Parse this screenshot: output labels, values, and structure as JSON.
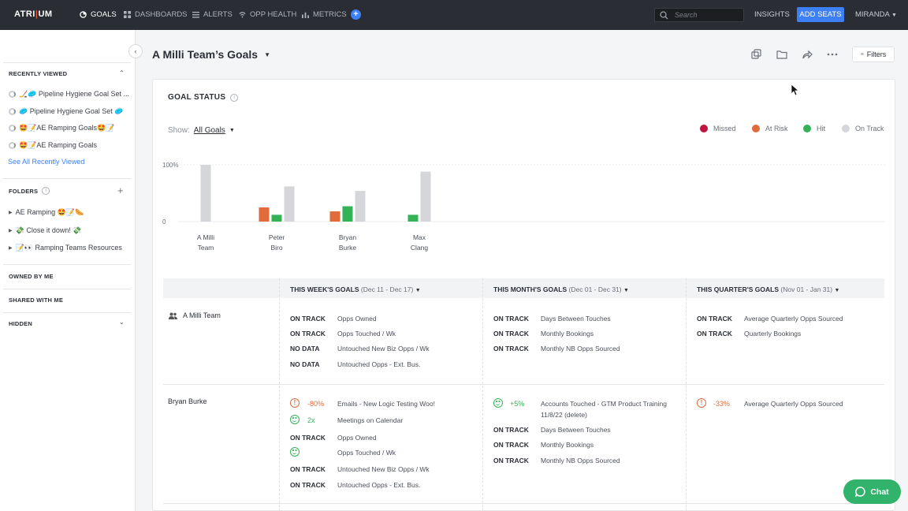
{
  "nav": {
    "logo_left": "ATRI",
    "logo_right": "UM",
    "items": [
      {
        "label": "GOALS",
        "icon": "goal-icon"
      },
      {
        "label": "DASHBOARDS",
        "icon": "grid-icon"
      },
      {
        "label": "ALERTS",
        "icon": "list-icon"
      },
      {
        "label": "OPP HEALTH",
        "icon": "wifi-icon"
      },
      {
        "label": "METRICS",
        "icon": "bar-chart-icon"
      }
    ],
    "search_placeholder": "Search",
    "insights": "INSIGHTS",
    "add_seats": "ADD SEATS",
    "user": "MIRANDA"
  },
  "sidebar": {
    "recently_viewed_title": "RECENTLY VIEWED",
    "recent": [
      "🏒🥏 Pipeline Hygiene Goal Set ...",
      "🥏 Pipeline Hygiene Goal Set 🥏",
      "🤩📝AE Ramping Goals🤩📝",
      "🤩📝AE Ramping Goals"
    ],
    "see_all": "See All Recently Viewed",
    "folders_title": "FOLDERS",
    "folders": [
      "AE Ramping 🤩📝🌭",
      "💸 Close it down! 💸",
      "📝👀 Ramping Teams Resources"
    ],
    "owned_by_me": "OWNED BY ME",
    "shared_with_me": "SHARED WITH ME",
    "hidden": "HIDDEN"
  },
  "header": {
    "title": "A Milli Team’s Goals",
    "filters": "Filters"
  },
  "goal_status": {
    "title": "GOAL STATUS",
    "show_label": "Show:",
    "show_value": "All Goals",
    "legend": [
      {
        "label": "Missed",
        "color": "#c0143c"
      },
      {
        "label": "At Risk",
        "color": "#e06b3b"
      },
      {
        "label": "Hit",
        "color": "#34b356"
      },
      {
        "label": "On Track",
        "color": "#d4d6d9"
      }
    ]
  },
  "chart_data": {
    "type": "bar",
    "categories": [
      "A Milli Team",
      "Peter Biro",
      "Bryan Burke",
      "Max Clang"
    ],
    "category_lines": [
      [
        "A Milli",
        "Team"
      ],
      [
        "Peter",
        "Biro"
      ],
      [
        "Bryan",
        "Burke"
      ],
      [
        "Max",
        "Clang"
      ]
    ],
    "series": [
      {
        "name": "Missed",
        "values": [
          0,
          0,
          0,
          0
        ]
      },
      {
        "name": "At Risk",
        "values": [
          0,
          25,
          18,
          0
        ]
      },
      {
        "name": "Hit",
        "values": [
          0,
          12,
          27,
          12
        ]
      },
      {
        "name": "On Track",
        "values": [
          100,
          62,
          54,
          88
        ]
      }
    ],
    "yticks": [
      "100%",
      "0"
    ],
    "ylim": [
      0,
      100
    ]
  },
  "table": {
    "col_headers": [
      {
        "title": "THIS WEEK'S GOALS",
        "range": "(Dec 11 - Dec 17)"
      },
      {
        "title": "THIS MONTH'S GOALS",
        "range": "(Dec 01 - Dec 31)"
      },
      {
        "title": "THIS QUARTER'S GOALS",
        "range": "(Nov 01 - Jan 31)"
      }
    ],
    "rows": [
      {
        "name": "A Milli Team",
        "week": [
          {
            "status": "ON TRACK",
            "goal": "Opps Owned"
          },
          {
            "status": "ON TRACK",
            "goal": "Opps Touched / Wk"
          },
          {
            "status": "NO DATA",
            "goal": "Untouched New Biz Opps / Wk"
          },
          {
            "status": "NO DATA",
            "goal": "Untouched Opps - Ext. Bus."
          }
        ],
        "month": [
          {
            "status": "ON TRACK",
            "goal": "Days Between Touches"
          },
          {
            "status": "ON TRACK",
            "goal": "Monthly Bookings"
          },
          {
            "status": "ON TRACK",
            "goal": "Monthly NB Opps Sourced"
          }
        ],
        "quarter": [
          {
            "status": "ON TRACK",
            "goal": "Average Quarterly Opps Sourced"
          },
          {
            "status": "ON TRACK",
            "goal": "Quarterly Bookings"
          }
        ]
      },
      {
        "name": "Bryan Burke",
        "week": [
          {
            "pct": "-80%",
            "goal": "Emails - New Logic Testing Woo!"
          },
          {
            "pct": "2x",
            "goal": "Meetings on Calendar"
          },
          {
            "status": "ON TRACK",
            "goal": "Opps Owned"
          },
          {
            "status": "",
            "goal": "Opps Touched / Wk"
          },
          {
            "status": "ON TRACK",
            "goal": "Untouched New Biz Opps / Wk"
          },
          {
            "status": "ON TRACK",
            "goal": "Untouched Opps - Ext. Bus."
          }
        ],
        "month": [
          {
            "pct": "+5%",
            "goal": "Accounts Touched - GTM Product Training 11/8/22 (delete)"
          },
          {
            "status": "ON TRACK",
            "goal": "Days Between Touches"
          },
          {
            "status": "ON TRACK",
            "goal": "Monthly Bookings"
          },
          {
            "status": "ON TRACK",
            "goal": "Monthly NB Opps Sourced"
          }
        ],
        "quarter": [
          {
            "pct": "-33%",
            "goal": "Average Quarterly Opps Sourced"
          }
        ]
      }
    ]
  },
  "chat": "Chat"
}
